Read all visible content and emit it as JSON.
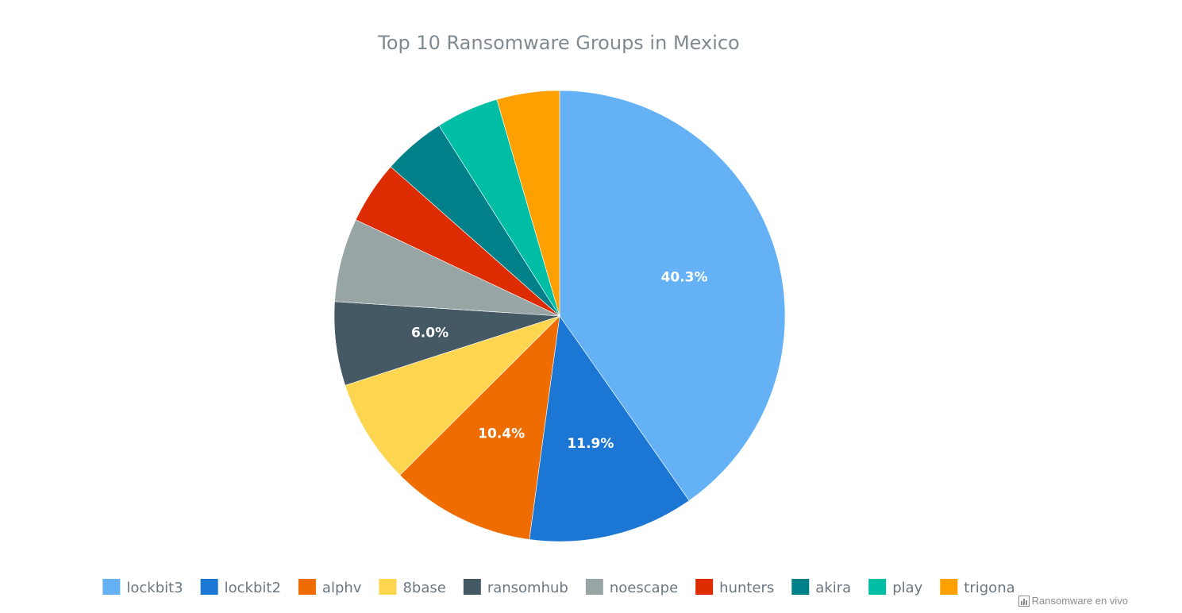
{
  "credit": {
    "text": "Ransomware en vivo",
    "icon": "bar-chart-icon"
  },
  "chart_data": {
    "type": "pie",
    "title": "Top 10 Ransomware Groups in Mexico",
    "legend_position": "bottom",
    "slices": [
      {
        "name": "lockbit3",
        "value": 40.3,
        "color": "#64b2f5",
        "label": "40.3%"
      },
      {
        "name": "lockbit2",
        "value": 11.9,
        "color": "#1c76d3",
        "label": "11.9%"
      },
      {
        "name": "alphv",
        "value": 10.4,
        "color": "#ef6c00",
        "label": "10.4%"
      },
      {
        "name": "8base",
        "value": 7.5,
        "color": "#fed54f",
        "label": ""
      },
      {
        "name": "ransomhub",
        "value": 6.0,
        "color": "#455964",
        "label": "6.0%"
      },
      {
        "name": "noescape",
        "value": 6.0,
        "color": "#97a6a5",
        "label": ""
      },
      {
        "name": "hunters",
        "value": 4.5,
        "color": "#dd2c01",
        "label": ""
      },
      {
        "name": "akira",
        "value": 4.5,
        "color": "#00818a",
        "label": ""
      },
      {
        "name": "play",
        "value": 4.5,
        "color": "#00bea5",
        "label": ""
      },
      {
        "name": "trigona",
        "value": 4.5,
        "color": "#fea100",
        "label": ""
      }
    ]
  }
}
